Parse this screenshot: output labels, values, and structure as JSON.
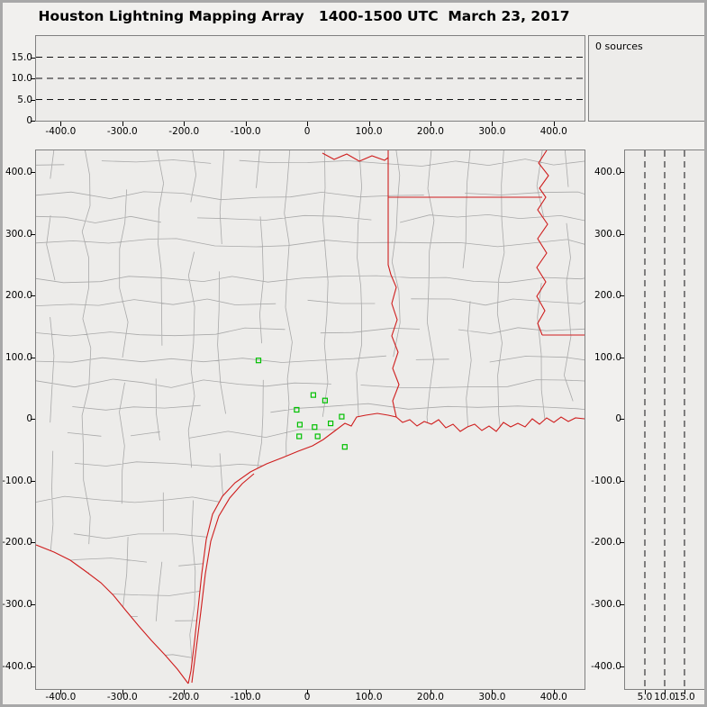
{
  "title": "Houston Lightning Mapping Array   1400-1500 UTC  March 23, 2017",
  "histogram_panel": {
    "sources_label": "0 sources"
  },
  "colors": {
    "background": "#f1f0ee",
    "panel_bg": "#edecea",
    "frame": "#808080",
    "county_line": "#a9a9a9",
    "state_line": "#cf1d1d",
    "station": "#00c000",
    "dash_line": "#111111",
    "text": "#000000"
  },
  "chart_data": {
    "type": "scatter",
    "title": "Houston Lightning Mapping Array",
    "time_range": "1400-1500 UTC",
    "date": "March 23, 2017",
    "sources_count": 0,
    "sources": [],
    "map_panel": {
      "x_range_km": [
        -440,
        450
      ],
      "y_range_km": [
        -437,
        435
      ],
      "x_label_ticks": {
        "values": [
          -400,
          -300,
          -200,
          -100,
          0,
          100,
          200,
          300,
          400
        ],
        "labels": [
          "-400.0",
          "-300.0",
          "-200.0",
          "-100.0",
          "0",
          "100.0",
          "200.0",
          "300.0",
          "400.0"
        ]
      },
      "y_label_ticks": {
        "values": [
          400,
          300,
          200,
          100,
          0,
          -100,
          -200,
          -300,
          -400
        ],
        "labels": [
          "400.0",
          "300.0",
          "200.0",
          "100.0",
          "0",
          "-100.0",
          "-200.0",
          "-300.0",
          "-400.0"
        ]
      },
      "stations_east_north_km": [
        [
          -79,
          95
        ],
        [
          10,
          39
        ],
        [
          29,
          30
        ],
        [
          -17,
          15
        ],
        [
          -12,
          -9
        ],
        [
          12,
          -13
        ],
        [
          -13,
          -28
        ],
        [
          17,
          -28
        ],
        [
          38,
          -7
        ],
        [
          56,
          4
        ],
        [
          61,
          -45
        ]
      ]
    },
    "altitude_panels": {
      "alt_range_km": [
        0,
        20
      ],
      "dashed_gridline_altitudes_km": [
        5,
        10,
        15
      ],
      "top_panel_y_tick_values": [
        15,
        10,
        5,
        0
      ],
      "top_panel_y_tick_labels": [
        "15.0",
        "10.0",
        "5.0",
        "0"
      ],
      "right_panel_x_tick_values": [
        5,
        10,
        15
      ],
      "right_panel_x_tick_labels": [
        "5.0",
        "10.0",
        "15.0"
      ]
    }
  }
}
